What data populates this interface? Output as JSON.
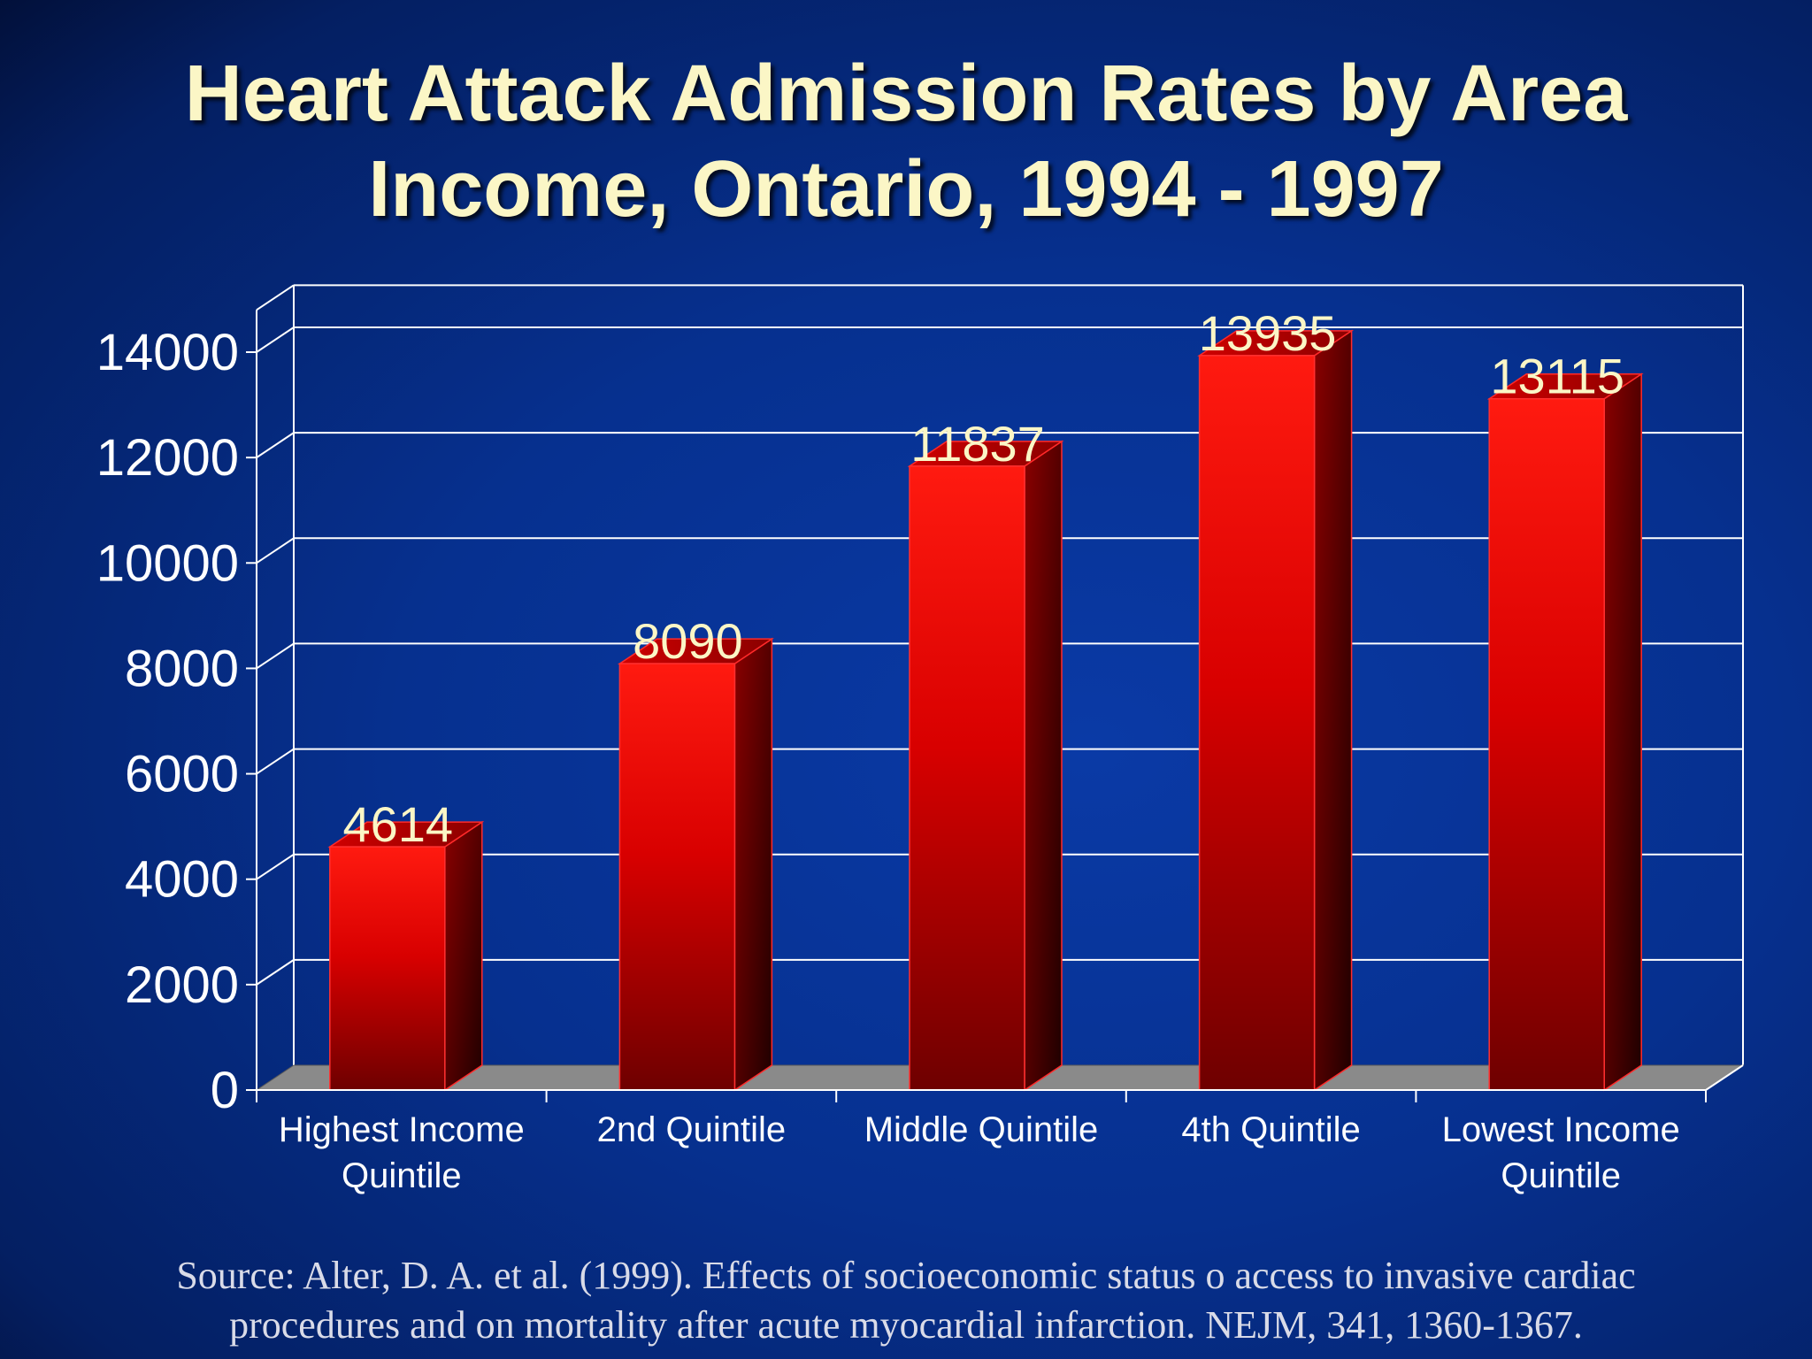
{
  "slide": {
    "title_line1": "Heart Attack Admission Rates by Area",
    "title_line2": "Income, Ontario, 1994 - 1997",
    "source_line1": "Source: Alter, D. A. et al. (1999). Effects of socioeconomic status o access to invasive cardiac",
    "source_line2": "procedures and on mortality after acute myocardial infarction.  NEJM, 341, 1360-1367."
  },
  "colors": {
    "title": "#fbf6c6",
    "data_label": "#fbf6c6",
    "bar_front_top": "#ff1a10",
    "bar_front_bottom": "#6e0000",
    "bar_side": "#7a0000",
    "bar_top": "#c00000",
    "grid": "#ffffff",
    "floor": "#8a8a8a",
    "axis_text": "#ffffff"
  },
  "chart_data": {
    "type": "bar",
    "style": "3d-column",
    "categories": [
      [
        "Highest Income",
        "Quintile"
      ],
      [
        "2nd Quintile"
      ],
      [
        "Middle Quintile"
      ],
      [
        "4th Quintile"
      ],
      [
        "Lowest Income",
        "Quintile"
      ]
    ],
    "values": [
      4614,
      8090,
      11837,
      13935,
      13115
    ],
    "data_labels": [
      "4614",
      "8090",
      "11837",
      "13935",
      "13115"
    ],
    "ylim": [
      0,
      14000
    ],
    "yticks": [
      0,
      2000,
      4000,
      6000,
      8000,
      10000,
      12000,
      14000
    ],
    "ytick_labels": [
      "0",
      "2000",
      "4000",
      "6000",
      "8000",
      "10000",
      "12000",
      "14000"
    ],
    "grid": true,
    "legend": "none"
  }
}
